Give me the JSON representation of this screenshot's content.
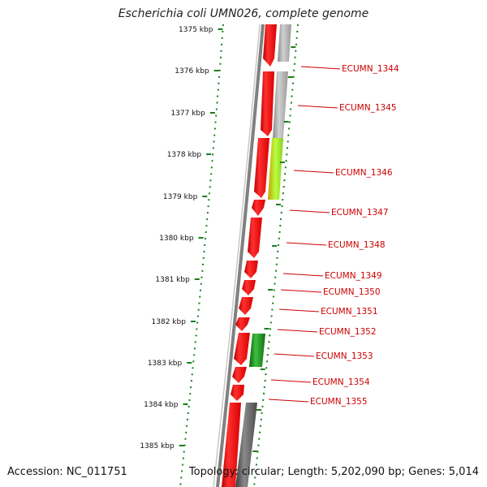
{
  "title": "Escherichia coli UMN026, complete genome",
  "accession": "Accession: NC_011751",
  "topology": "Topology: circular; Length: 5,202,090 bp; Genes: 5,014",
  "colors": {
    "cds_red": "#ff0000",
    "rna_green": "#1e8c1e",
    "light_green": "#aaee33",
    "grey": "#b5b5b5",
    "dark_grey": "#6a6a6a",
    "tick_green": "#1a7f1a",
    "label_red": "#cc0000"
  },
  "ticks": [
    {
      "label": "1375 kbp"
    },
    {
      "label": "1376 kbp"
    },
    {
      "label": "1377 kbp"
    },
    {
      "label": "1378 kbp"
    },
    {
      "label": "1379 kbp"
    },
    {
      "label": "1380 kbp"
    },
    {
      "label": "1381 kbp"
    },
    {
      "label": "1382 kbp"
    },
    {
      "label": "1383 kbp"
    },
    {
      "label": "1384 kbp"
    },
    {
      "label": "1385 kbp"
    }
  ],
  "genes": [
    {
      "label": "ECUMN_1344"
    },
    {
      "label": "ECUMN_1345"
    },
    {
      "label": "ECUMN_1346"
    },
    {
      "label": "ECUMN_1347"
    },
    {
      "label": "ECUMN_1348"
    },
    {
      "label": "ECUMN_1349"
    },
    {
      "label": "ECUMN_1350"
    },
    {
      "label": "ECUMN_1351"
    },
    {
      "label": "ECUMN_1352"
    },
    {
      "label": "ECUMN_1353"
    },
    {
      "label": "ECUMN_1354"
    },
    {
      "label": "ECUMN_1355"
    }
  ]
}
